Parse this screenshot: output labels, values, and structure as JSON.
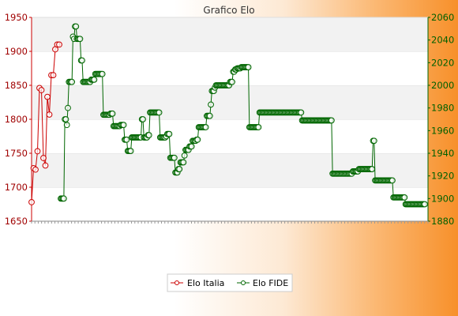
{
  "chart_data": {
    "type": "line",
    "title": "Grafico Elo",
    "xlabel": "",
    "ylabel": "",
    "left_axis": {
      "ylim": [
        1650,
        1950
      ],
      "ticks": [
        1650,
        1700,
        1750,
        1800,
        1850,
        1900,
        1950
      ],
      "color": "#cc0000"
    },
    "right_axis": {
      "ylim": [
        1880,
        2060
      ],
      "ticks": [
        1880,
        1900,
        1920,
        1940,
        1960,
        1980,
        2000,
        2020,
        2040,
        2060
      ],
      "color": "#006600"
    },
    "grid": "horizontal bands",
    "legend": {
      "placement": "bottom-center"
    },
    "series": [
      {
        "name": "Elo Italia",
        "axis": "left",
        "color": "#cc0000",
        "values": [
          1678,
          1728,
          1726,
          1753,
          1846,
          1843,
          1743,
          1732,
          1833,
          1807,
          1865,
          1865,
          1903,
          1910,
          1910
        ]
      },
      {
        "name": "Elo FIDE",
        "axis": "right",
        "color": "#006600",
        "values": [
          1900,
          1900,
          1900,
          1900,
          1970,
          1970,
          1965,
          1980,
          2003,
          2003,
          2003,
          2003,
          2043,
          2041,
          2052,
          2052,
          2041,
          2041,
          2041,
          2041,
          2022,
          2022,
          2003,
          2003,
          2003,
          2003,
          2003,
          2003,
          2003,
          2003,
          2005,
          2005,
          2005,
          2005,
          2010,
          2010,
          2010,
          2010,
          2010,
          2010,
          2010,
          2010,
          1974,
          1974,
          1974,
          1974,
          1974,
          1974,
          1974,
          1975,
          1975,
          1975,
          1964,
          1964,
          1964,
          1964,
          1964,
          1964,
          1964,
          1965,
          1965,
          1965,
          1965,
          1952,
          1952,
          1952,
          1942,
          1942,
          1942,
          1942,
          1954,
          1954,
          1954,
          1954,
          1954,
          1954,
          1954,
          1954,
          1954,
          1954,
          1970,
          1970,
          1954,
          1954,
          1954,
          1954,
          1956,
          1956,
          1976,
          1976,
          1976,
          1976,
          1976,
          1976,
          1976,
          1976,
          1976,
          1976,
          1954,
          1954,
          1954,
          1954,
          1954,
          1954,
          1955,
          1957,
          1957,
          1957,
          1936,
          1936,
          1936,
          1936,
          1936,
          1923,
          1923,
          1923,
          1926,
          1926,
          1932,
          1932,
          1932,
          1932,
          1938,
          1943,
          1943,
          1943,
          1943,
          1946,
          1946,
          1946,
          1951,
          1951,
          1951,
          1951,
          1952,
          1952,
          1963,
          1963,
          1963,
          1963,
          1963,
          1963,
          1963,
          1963,
          1973,
          1973,
          1973,
          1973,
          1983,
          1995,
          1995,
          1995,
          1998,
          2000,
          2000,
          2000,
          2000,
          2000,
          2000,
          2000,
          2000,
          2000,
          2000,
          2000,
          2000,
          2000,
          2000,
          2003,
          2003,
          2003,
          2012,
          2012,
          2014,
          2014,
          2015,
          2015,
          2015,
          2015,
          2016,
          2016,
          2016,
          2016,
          2016,
          2016,
          2016,
          2016,
          1963,
          1963,
          1963,
          1963,
          1963,
          1963,
          1963,
          1963,
          1963,
          1963,
          1976,
          1976,
          1976,
          1976,
          1976,
          1976,
          1976,
          1976,
          1976,
          1976,
          1976,
          1976,
          1976,
          1976,
          1976,
          1976,
          1976,
          1976,
          1976,
          1976,
          1976,
          1976,
          1976,
          1976,
          1976,
          1976,
          1976,
          1976,
          1976,
          1976,
          1976,
          1976,
          1976,
          1976,
          1976,
          1976,
          1976,
          1976,
          1976,
          1976,
          1976,
          1976,
          1969,
          1969,
          1969,
          1969,
          1969,
          1969,
          1969,
          1969,
          1969,
          1969,
          1969,
          1969,
          1969,
          1969,
          1969,
          1969,
          1969,
          1969,
          1969,
          1969,
          1969,
          1969,
          1969,
          1969,
          1969,
          1969,
          1969,
          1969,
          1969,
          1969,
          1922,
          1922,
          1922,
          1922,
          1922,
          1922,
          1922,
          1922,
          1922,
          1922,
          1922,
          1922,
          1922,
          1922,
          1922,
          1922,
          1922,
          1922,
          1922,
          1922,
          1924,
          1924,
          1924,
          1924,
          1924,
          1924,
          1926,
          1926,
          1926,
          1926,
          1926,
          1926,
          1926,
          1926,
          1926,
          1926,
          1926,
          1926,
          1926,
          1926,
          1951,
          1951,
          1916,
          1916,
          1916,
          1916,
          1916,
          1916,
          1916,
          1916,
          1916,
          1916,
          1916,
          1916,
          1916,
          1916,
          1916,
          1916,
          1916,
          1916,
          1901,
          1901,
          1901,
          1901,
          1901,
          1901,
          1901,
          1901,
          1901,
          1901,
          1901,
          1901,
          1895,
          1895,
          1895,
          1895,
          1895,
          1895,
          1895,
          1895,
          1895,
          1895,
          1895,
          1895,
          1895,
          1895,
          1895,
          1895,
          1895,
          1895,
          1895,
          1895
        ]
      }
    ]
  }
}
